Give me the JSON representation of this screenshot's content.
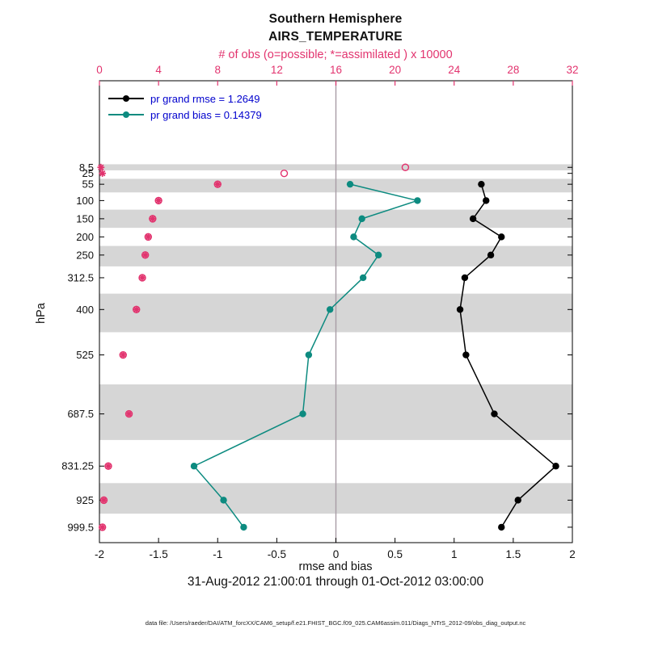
{
  "header": {
    "line1": "Southern Hemisphere",
    "line2": "AIRS_TEMPERATURE"
  },
  "top_axis": {
    "label": "# of obs (o=possible; *=assimilated ) x 10000",
    "color": "#e2336e",
    "ticks": [
      "0",
      "4",
      "8",
      "12",
      "16",
      "20",
      "24",
      "28",
      "32"
    ],
    "tick_values": [
      0,
      4,
      8,
      12,
      16,
      20,
      24,
      28,
      32
    ]
  },
  "bottom_axis": {
    "label": "rmse and bias",
    "ticks": [
      "-2",
      "-1.5",
      "-1",
      "-0.5",
      "0",
      "0.5",
      "1",
      "1.5",
      "2"
    ],
    "tick_values": [
      -2,
      -1.5,
      -1,
      -0.5,
      0,
      0.5,
      1,
      1.5,
      2
    ]
  },
  "left_axis": {
    "label": "hPa",
    "ticks": [
      "8.5",
      "25",
      "55",
      "100",
      "150",
      "200",
      "250",
      "312.5",
      "400",
      "525",
      "687.5",
      "831.25",
      "925",
      "999.5"
    ],
    "tick_values": [
      8.5,
      25,
      55,
      100,
      150,
      200,
      250,
      312.5,
      400,
      525,
      687.5,
      831.25,
      925,
      999.5
    ]
  },
  "legend": {
    "text_color": "#0000cd",
    "items": [
      {
        "label": "pr grand rmse = 1.2649",
        "color": "#000000"
      },
      {
        "label": "pr grand bias = 0.14379",
        "color": "#0d8b80"
      }
    ]
  },
  "footer": {
    "date_range": "31-Aug-2012 21:00:01 through 01-Oct-2012 03:00:00",
    "data_file": "data file: /Users/raeder/DAI/ATM_forcXX/CAM6_setup/f.e21.FHIST_BGC.f09_025.CAM6assim.011/Diags_NTrS_2012-09/obs_diag_output.nc"
  },
  "chart_data": {
    "type": "line",
    "title": "Southern Hemisphere AIRS_TEMPERATURE",
    "xlabel": "rmse and bias",
    "ylabel": "hPa",
    "top_xlabel": "# of obs (o=possible; *=assimilated ) x 10000",
    "xlim": [
      -2,
      2
    ],
    "top_xlim": [
      0,
      32
    ],
    "ylim_hPa": [
      -230,
      1042
    ],
    "grid": false,
    "legend_position": "top-left-inside",
    "band_color": "#d6d6d6",
    "zero_line": {
      "x": 0,
      "color": "#a89ca5"
    },
    "pressure_levels_hPa": [
      8.5,
      25,
      55,
      100,
      150,
      200,
      250,
      312.5,
      400,
      525,
      687.5,
      831.25,
      925,
      999.5
    ],
    "gray_band_levels_hPa": [
      [
        0,
        16.75
      ],
      [
        40,
        77.5
      ],
      [
        125,
        175
      ],
      [
        225,
        281.25
      ],
      [
        356.25,
        462.5
      ],
      [
        606.25,
        759.375
      ],
      [
        878.125,
        962.25
      ]
    ],
    "series": [
      {
        "name": "pr grand rmse",
        "grand_value": 1.2649,
        "axis": "bottom",
        "style": "line+dot",
        "color": "#000000",
        "levels_hPa": [
          55,
          100,
          150,
          200,
          250,
          312.5,
          400,
          525,
          687.5,
          831.25,
          925,
          999.5
        ],
        "values": [
          1.23,
          1.27,
          1.16,
          1.4,
          1.31,
          1.09,
          1.05,
          1.1,
          1.34,
          1.86,
          1.54,
          1.4
        ]
      },
      {
        "name": "pr grand bias",
        "grand_value": 0.14379,
        "axis": "bottom",
        "style": "line+dot",
        "color": "#0d8b80",
        "levels_hPa": [
          55,
          100,
          150,
          200,
          250,
          312.5,
          400,
          525,
          687.5,
          831.25,
          925,
          999.5
        ],
        "values": [
          0.12,
          0.69,
          0.22,
          0.15,
          0.36,
          0.23,
          -0.05,
          -0.23,
          -0.28,
          -1.2,
          -0.95,
          -0.78
        ]
      },
      {
        "name": "obs assimilated (x10000)",
        "axis": "top",
        "style": "asterisk",
        "color": "#e2336e",
        "levels_hPa": [
          8.5,
          25,
          55,
          100,
          150,
          200,
          250,
          312.5,
          400,
          525,
          687.5,
          831.25,
          925,
          999.5
        ],
        "values": [
          0.1,
          0.2,
          8.0,
          4.0,
          3.6,
          3.3,
          3.1,
          2.9,
          2.5,
          1.6,
          2.0,
          0.6,
          0.3,
          0.2
        ]
      },
      {
        "name": "obs possible (x10000)",
        "axis": "top",
        "style": "open-circle",
        "color": "#e2336e",
        "levels_hPa": [
          8.5,
          25,
          55,
          100,
          150,
          200,
          250,
          312.5,
          400,
          525,
          687.5,
          831.25,
          925,
          999.5
        ],
        "values": [
          20.7,
          12.5,
          8.0,
          4.0,
          3.6,
          3.3,
          3.1,
          2.9,
          2.5,
          1.6,
          2.0,
          0.6,
          0.3,
          0.2
        ]
      }
    ]
  }
}
